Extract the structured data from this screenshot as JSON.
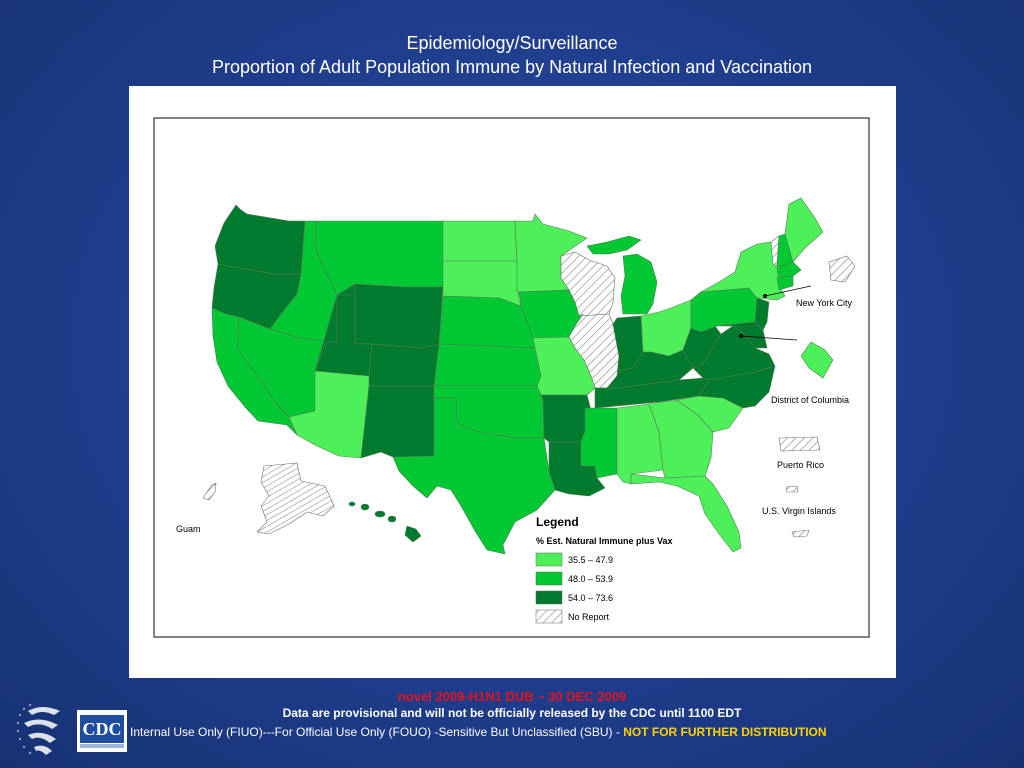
{
  "title": {
    "line1": "Epidemiology/Surveillance",
    "line2": "Proportion of Adult Population Immune by Natural Infection and Vaccination"
  },
  "map": {
    "region": "United States",
    "labels": {
      "new_york_city": "New York City",
      "district_of_columbia": "District of Columbia",
      "puerto_rico": "Puerto Rico",
      "virgin_islands": "U.S. Virgin Islands",
      "guam": "Guam"
    },
    "legend": {
      "title": "Legend",
      "subtitle": "% Est. Natural Immune plus Vax",
      "items": [
        {
          "label": "35.5 – 47.9",
          "color": "#4ef05a"
        },
        {
          "label": "48.0 – 53.9",
          "color": "#00c832"
        },
        {
          "label": "54.0 – 73.6",
          "color": "#007a2c"
        },
        {
          "label": "No Report",
          "color": "hatched"
        }
      ]
    },
    "colors": {
      "light": "#4ef05a",
      "medium": "#00c832",
      "dark": "#007a2c",
      "no_report": "hatched"
    },
    "categories": {
      "dark": [
        "WA",
        "OR",
        "WY",
        "UT",
        "CO",
        "NM",
        "AR",
        "LA",
        "IN",
        "KY",
        "WV",
        "TN",
        "VA",
        "NC",
        "NJ",
        "MD",
        "DE",
        "HI",
        "VT"
      ],
      "medium": [
        "ID",
        "MT",
        "NV",
        "CA",
        "NE",
        "KS",
        "OK",
        "TX",
        "IA",
        "MS",
        "MI",
        "PA",
        "CT",
        "MA",
        "NH",
        "RI"
      ],
      "light": [
        "AZ",
        "ND",
        "SD",
        "MN",
        "MO",
        "OH",
        "NY",
        "ME",
        "AL",
        "GA",
        "SC",
        "FL"
      ],
      "no_report": [
        "AK",
        "WI",
        "Puerto Rico",
        "U.S. Virgin Islands",
        "Guam"
      ]
    }
  },
  "footer": {
    "status": "novel 2009-H1N1 DUB – 30 DEC 2009",
    "provisional": "Data are provisional and will not be officially released by the CDC until 1100 EDT",
    "usage": "Internal Use Only (FIUO)---For Official Use Only (FOUO)  -Sensitive But Unclassified (SBU) - ",
    "no_further": "NOT FOR FURTHER DISTRIBUTION"
  },
  "logos": {
    "cdc": "CDC"
  }
}
